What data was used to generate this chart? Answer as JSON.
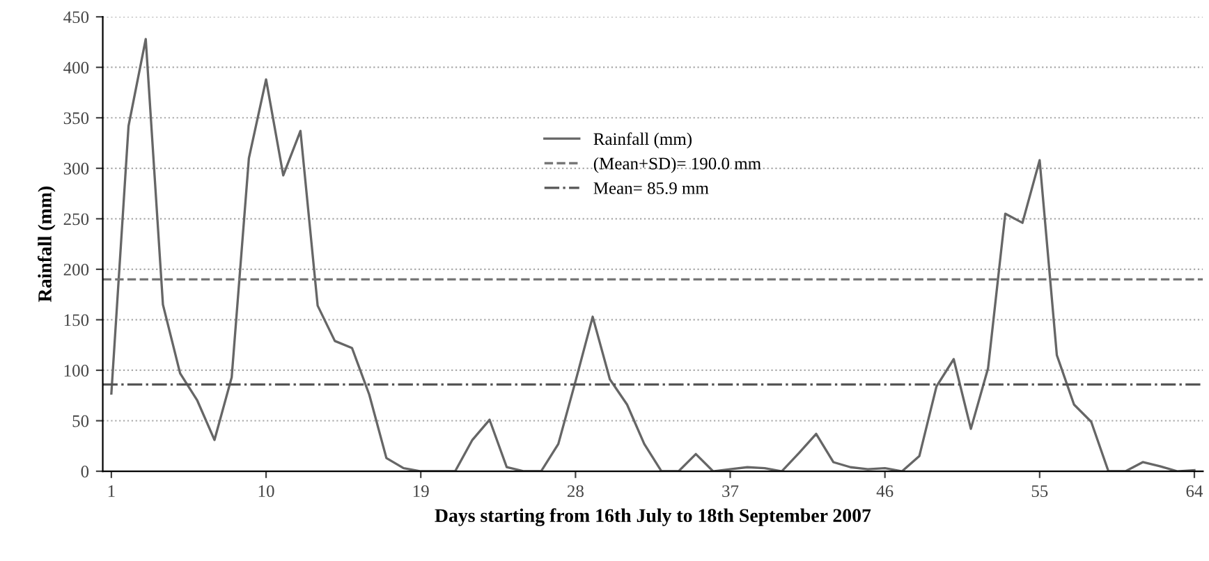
{
  "chart_data": {
    "type": "line",
    "xlabel": "Days starting from 16th July to 18th September 2007",
    "ylabel": "Rainfall (mm)",
    "x": [
      1,
      2,
      3,
      4,
      5,
      6,
      7,
      8,
      9,
      10,
      11,
      12,
      13,
      14,
      15,
      16,
      17,
      18,
      19,
      20,
      21,
      22,
      23,
      24,
      25,
      26,
      27,
      28,
      29,
      30,
      31,
      32,
      33,
      34,
      35,
      36,
      37,
      38,
      39,
      40,
      41,
      42,
      43,
      44,
      45,
      46,
      47,
      48,
      49,
      50,
      51,
      52,
      53,
      54,
      55,
      56,
      57,
      58,
      59,
      60,
      61,
      62,
      63,
      64
    ],
    "series": [
      {
        "name": "Rainfall (mm)",
        "color": "#666666",
        "values": [
          77,
          342,
          428,
          165,
          97,
          70,
          31,
          93,
          310,
          388,
          293,
          337,
          164,
          129,
          122,
          76,
          13,
          3,
          0,
          0,
          0,
          31,
          51,
          4,
          0,
          0,
          27,
          89,
          153,
          91,
          66,
          27,
          0,
          0,
          17,
          0,
          2,
          4,
          3,
          0,
          18,
          37,
          9,
          4,
          2,
          3,
          0,
          15,
          84,
          111,
          42,
          102,
          255,
          246,
          308,
          115,
          66,
          49,
          0,
          0,
          9,
          5,
          0,
          1
        ]
      }
    ],
    "ref_lines": [
      {
        "axis": "y",
        "value": 190.0,
        "label": "(Mean+SD)= 190.0 mm",
        "color": "#777777",
        "line_style": "dashed"
      },
      {
        "axis": "y",
        "value": 85.9,
        "label": "Mean= 85.9 mm",
        "color": "#555555",
        "line_style": "dashdot"
      }
    ],
    "xlim": [
      0.5,
      64.5
    ],
    "xticks": [
      1,
      10,
      19,
      28,
      37,
      46,
      55,
      64
    ],
    "ylim": [
      0,
      450
    ],
    "yticks": [
      0,
      50,
      100,
      150,
      200,
      250,
      300,
      350,
      400,
      450
    ],
    "grid": "y",
    "legend": "top",
    "marker": "none",
    "line_style": "solid"
  }
}
